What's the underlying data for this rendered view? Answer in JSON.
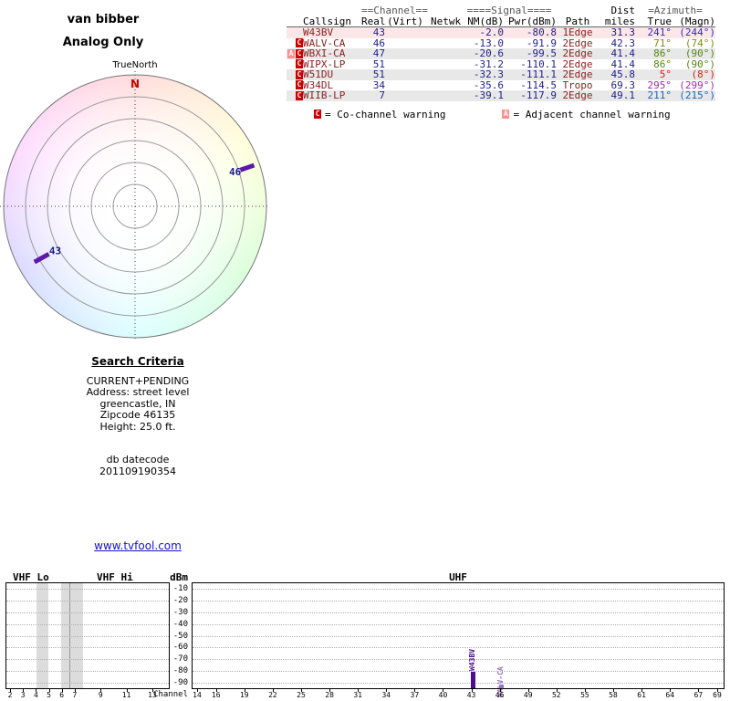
{
  "title": {
    "line1": "van bibber",
    "line2": "Analog Only"
  },
  "radar": {
    "north_label": "TrueNorth",
    "compass_n": "N",
    "marker_color": "#5e17a8",
    "markers": [
      {
        "label": "46",
        "azimuth_deg": 71,
        "label_r": 116,
        "tick_r1": 122,
        "tick_r2": 138
      },
      {
        "label": "43",
        "azimuth_deg": 241,
        "label_r": 100,
        "tick_r1": 108,
        "tick_r2": 126
      }
    ]
  },
  "table": {
    "groups": {
      "channel": "==Channel==",
      "signal": "====Signal====",
      "dist": "Dist",
      "azimuth": "=Azimuth="
    },
    "columns": {
      "callsign": "Callsign",
      "real": "Real",
      "virt": "(Virt)",
      "netwk": "Netwk",
      "nm": "NM(dB)",
      "pwr": "Pwr(dBm)",
      "path": "Path",
      "miles": "miles",
      "true": "True",
      "magn": "(Magn)"
    },
    "rows": [
      {
        "warnings": [],
        "callsign": "W43BV",
        "real": "43",
        "virt": "",
        "netwk": "",
        "nm": "-2.0",
        "pwr": "-80.8",
        "path": "1Edge",
        "miles": "31.3",
        "true": "241°",
        "magn": "(244°)",
        "az_color": "hsl(241,60%,45%)",
        "bg": "#fbe7e7"
      },
      {
        "warnings": [
          "C"
        ],
        "callsign": "WALV-CA",
        "real": "46",
        "virt": "",
        "netwk": "",
        "nm": "-13.0",
        "pwr": "-91.9",
        "path": "2Edge",
        "miles": "42.3",
        "true": "71°",
        "magn": "(74°)",
        "az_color": "hsl(71,75%,32%)",
        "bg": "#ffffff"
      },
      {
        "warnings": [
          "A",
          "C"
        ],
        "callsign": "WBXI-CA",
        "real": "47",
        "virt": "",
        "netwk": "",
        "nm": "-20.6",
        "pwr": "-99.5",
        "path": "2Edge",
        "miles": "41.4",
        "true": "86°",
        "magn": "(90°)",
        "az_color": "hsl(86,75%,30%)",
        "bg": "#e8e8e8"
      },
      {
        "warnings": [
          "C"
        ],
        "callsign": "WIPX-LP",
        "real": "51",
        "virt": "",
        "netwk": "",
        "nm": "-31.2",
        "pwr": "-110.1",
        "path": "2Edge",
        "miles": "41.4",
        "true": "86°",
        "magn": "(90°)",
        "az_color": "hsl(86,75%,30%)",
        "bg": "#ffffff"
      },
      {
        "warnings": [
          "C"
        ],
        "callsign": "W51DU",
        "real": "51",
        "virt": "",
        "netwk": "",
        "nm": "-32.3",
        "pwr": "-111.1",
        "path": "2Edge",
        "miles": "45.8",
        "true": "5°",
        "magn": "(8°)",
        "az_color": "hsl(5,80%,45%)",
        "bg": "#e8e8e8"
      },
      {
        "warnings": [
          "C"
        ],
        "callsign": "W34DL",
        "real": "34",
        "virt": "",
        "netwk": "",
        "nm": "-35.6",
        "pwr": "-114.5",
        "path": "Tropo",
        "miles": "69.3",
        "true": "295°",
        "magn": "(299°)",
        "az_color": "hsl(295,60%,42%)",
        "bg": "#ffffff"
      },
      {
        "warnings": [
          "C"
        ],
        "callsign": "WIIB-LP",
        "real": "7",
        "virt": "",
        "netwk": "",
        "nm": "-39.1",
        "pwr": "-117.9",
        "path": "2Edge",
        "miles": "49.1",
        "true": "211°",
        "magn": "(215°)",
        "az_color": "hsl(211,75%,40%)",
        "bg": "#e8e8e8"
      }
    ],
    "legend": [
      {
        "symbol": "C",
        "color": "#cc0000",
        "text": "= Co-channel warning"
      },
      {
        "symbol": "A",
        "color": "#ff9090",
        "text": "= Adjacent channel warning"
      }
    ]
  },
  "search": {
    "heading": "Search Criteria",
    "lines": [
      "CURRENT+PENDING",
      "Address: street level",
      "greencastle, IN",
      "Zipcode 46135",
      "Height: 25.0 ft."
    ],
    "db_lines": [
      "db datecode",
      "201109190354"
    ]
  },
  "link": {
    "text": "www.tvfool.com"
  },
  "chart_data": {
    "type": "bar",
    "title": "",
    "ylabel": "dBm",
    "xlabel": "Channel",
    "ylim": [
      -95,
      -5
    ],
    "y_ticks": [
      -10,
      -20,
      -30,
      -40,
      -50,
      -60,
      -70,
      -80,
      -90
    ],
    "grid": "dotted-horizontal",
    "legend_position": "none",
    "sections": [
      {
        "label": "VHF Lo"
      },
      {
        "label": "VHF Hi"
      },
      {
        "label": "UHF"
      }
    ],
    "vhf_ticks": [
      2,
      3,
      4,
      5,
      6,
      7,
      9,
      11,
      13
    ],
    "uhf_ticks": [
      14,
      16,
      19,
      22,
      25,
      28,
      31,
      34,
      37,
      40,
      43,
      46,
      49,
      52,
      55,
      58,
      61,
      64,
      67,
      69
    ],
    "signals": [
      {
        "callsign": "W43BV",
        "channel": 43,
        "pwr_dbm": -80.8,
        "color": "#4a0d8f"
      },
      {
        "callsign": "WALV-CA",
        "channel": 46,
        "pwr_dbm": -91.9,
        "color": "#9b6fc4"
      }
    ],
    "shaded_bands": [
      {
        "from_ch": 4.0,
        "to_ch": 4.9
      },
      {
        "from_ch": 5.9,
        "to_ch": 7.6
      }
    ]
  }
}
